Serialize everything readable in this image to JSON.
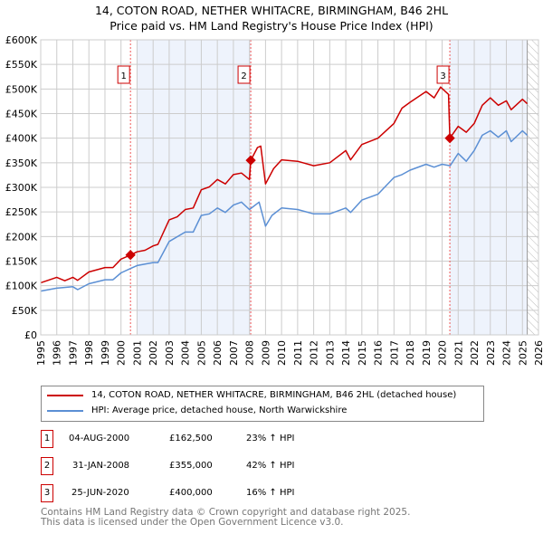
{
  "title_line1": "14, COTON ROAD, NETHER WHITACRE, BIRMINGHAM, B46 2HL",
  "title_line2": "Price paid vs. HM Land Registry's House Price Index (HPI)",
  "chart_data": {
    "type": "line",
    "xlim": [
      1995,
      2026
    ],
    "ylim": [
      0,
      600000
    ],
    "yticks": [
      0,
      50000,
      100000,
      150000,
      200000,
      250000,
      300000,
      350000,
      400000,
      450000,
      500000,
      550000,
      600000
    ],
    "ytick_labels": [
      "£0",
      "£50K",
      "£100K",
      "£150K",
      "£200K",
      "£250K",
      "£300K",
      "£350K",
      "£400K",
      "£450K",
      "£500K",
      "£550K",
      "£600K"
    ],
    "xticks": [
      1995,
      1996,
      1997,
      1998,
      1999,
      2000,
      2001,
      2002,
      2003,
      2004,
      2005,
      2006,
      2007,
      2008,
      2009,
      2010,
      2011,
      2012,
      2013,
      2014,
      2015,
      2016,
      2017,
      2018,
      2019,
      2020,
      2021,
      2022,
      2023,
      2024,
      2025,
      2026
    ],
    "grid": true,
    "shaded_ranges": [
      [
        2001.0,
        2008.08
      ],
      [
        2020.48,
        2025.3
      ]
    ],
    "forecast_hatch_from": 2025.3,
    "series": [
      {
        "name": "14, COTON ROAD, NETHER WHITACRE, BIRMINGHAM, B46 2HL (detached house)",
        "color": "#cc0000",
        "x": [
          1995,
          1996,
          1996.5,
          1997,
          1997.3,
          1998,
          1999,
          1999.5,
          2000,
          2000.6,
          2001,
          2001.5,
          2002,
          2002.3,
          2003,
          2003.5,
          2004,
          2004.5,
          2005,
          2005.5,
          2006,
          2006.5,
          2007,
          2007.5,
          2008.0,
          2008.08,
          2008.5,
          2008.7,
          2009.0,
          2009.5,
          2010,
          2011,
          2012,
          2013,
          2014,
          2014.3,
          2015,
          2016,
          2017,
          2017.5,
          2018,
          2019,
          2019.5,
          2019.9,
          2020.4,
          2020.48,
          2021,
          2021.5,
          2022,
          2022.5,
          2023,
          2023.5,
          2024,
          2024.3,
          2025,
          2025.3
        ],
        "y": [
          106000,
          117000,
          110000,
          117000,
          111000,
          128000,
          137000,
          137000,
          154000,
          162500,
          169000,
          172000,
          181000,
          184000,
          234000,
          240000,
          255000,
          258000,
          295000,
          301000,
          316000,
          307000,
          326000,
          329000,
          316000,
          355000,
          381000,
          384000,
          307000,
          338000,
          356000,
          353000,
          344000,
          350000,
          375000,
          356000,
          387000,
          400000,
          430000,
          461000,
          473000,
          495000,
          482000,
          504000,
          489000,
          400000,
          424000,
          412000,
          430000,
          467000,
          482000,
          467000,
          476000,
          458000,
          479000,
          470000
        ]
      },
      {
        "name": "HPI: Average price, detached house, North Warwickshire",
        "color": "#5b8fd4",
        "x": [
          1995,
          1996,
          1997,
          1997.3,
          1998,
          1999,
          1999.5,
          2000,
          2000.6,
          2001,
          2002,
          2002.3,
          2003,
          2004,
          2004.5,
          2005,
          2005.5,
          2006,
          2006.5,
          2007,
          2007.5,
          2008,
          2008.6,
          2009.0,
          2009.4,
          2010,
          2011,
          2012,
          2013,
          2014,
          2014.3,
          2015,
          2016,
          2017,
          2017.5,
          2018,
          2019,
          2019.5,
          2020,
          2020.5,
          2021,
          2021.5,
          2022,
          2022.5,
          2023,
          2023.5,
          2024,
          2024.3,
          2025,
          2025.3
        ],
        "y": [
          89000,
          95000,
          98000,
          92000,
          104000,
          112000,
          112000,
          126000,
          135000,
          141000,
          147000,
          147000,
          190000,
          209000,
          209000,
          243000,
          246000,
          258000,
          249000,
          264000,
          270000,
          255000,
          270000,
          221000,
          243000,
          258000,
          255000,
          246000,
          246000,
          258000,
          249000,
          274000,
          286000,
          320000,
          326000,
          335000,
          347000,
          341000,
          347000,
          344000,
          369000,
          353000,
          375000,
          406000,
          415000,
          402000,
          415000,
          393000,
          415000,
          406000
        ]
      }
    ],
    "sales": [
      {
        "id": "1",
        "x": 2000.59,
        "y": 162500,
        "date": "04-AUG-2000",
        "price": "£162,500",
        "hpi": "23% ↑ HPI"
      },
      {
        "id": "2",
        "x": 2008.08,
        "y": 355000,
        "date": "31-JAN-2008",
        "price": "£355,000",
        "hpi": "42% ↑ HPI"
      },
      {
        "id": "3",
        "x": 2020.48,
        "y": 400000,
        "date": "25-JUN-2020",
        "price": "£400,000",
        "hpi": "16% ↑ HPI"
      }
    ]
  },
  "footer_line1": "Contains HM Land Registry data © Crown copyright and database right 2025.",
  "footer_line2": "This data is licensed under the Open Government Licence v3.0."
}
